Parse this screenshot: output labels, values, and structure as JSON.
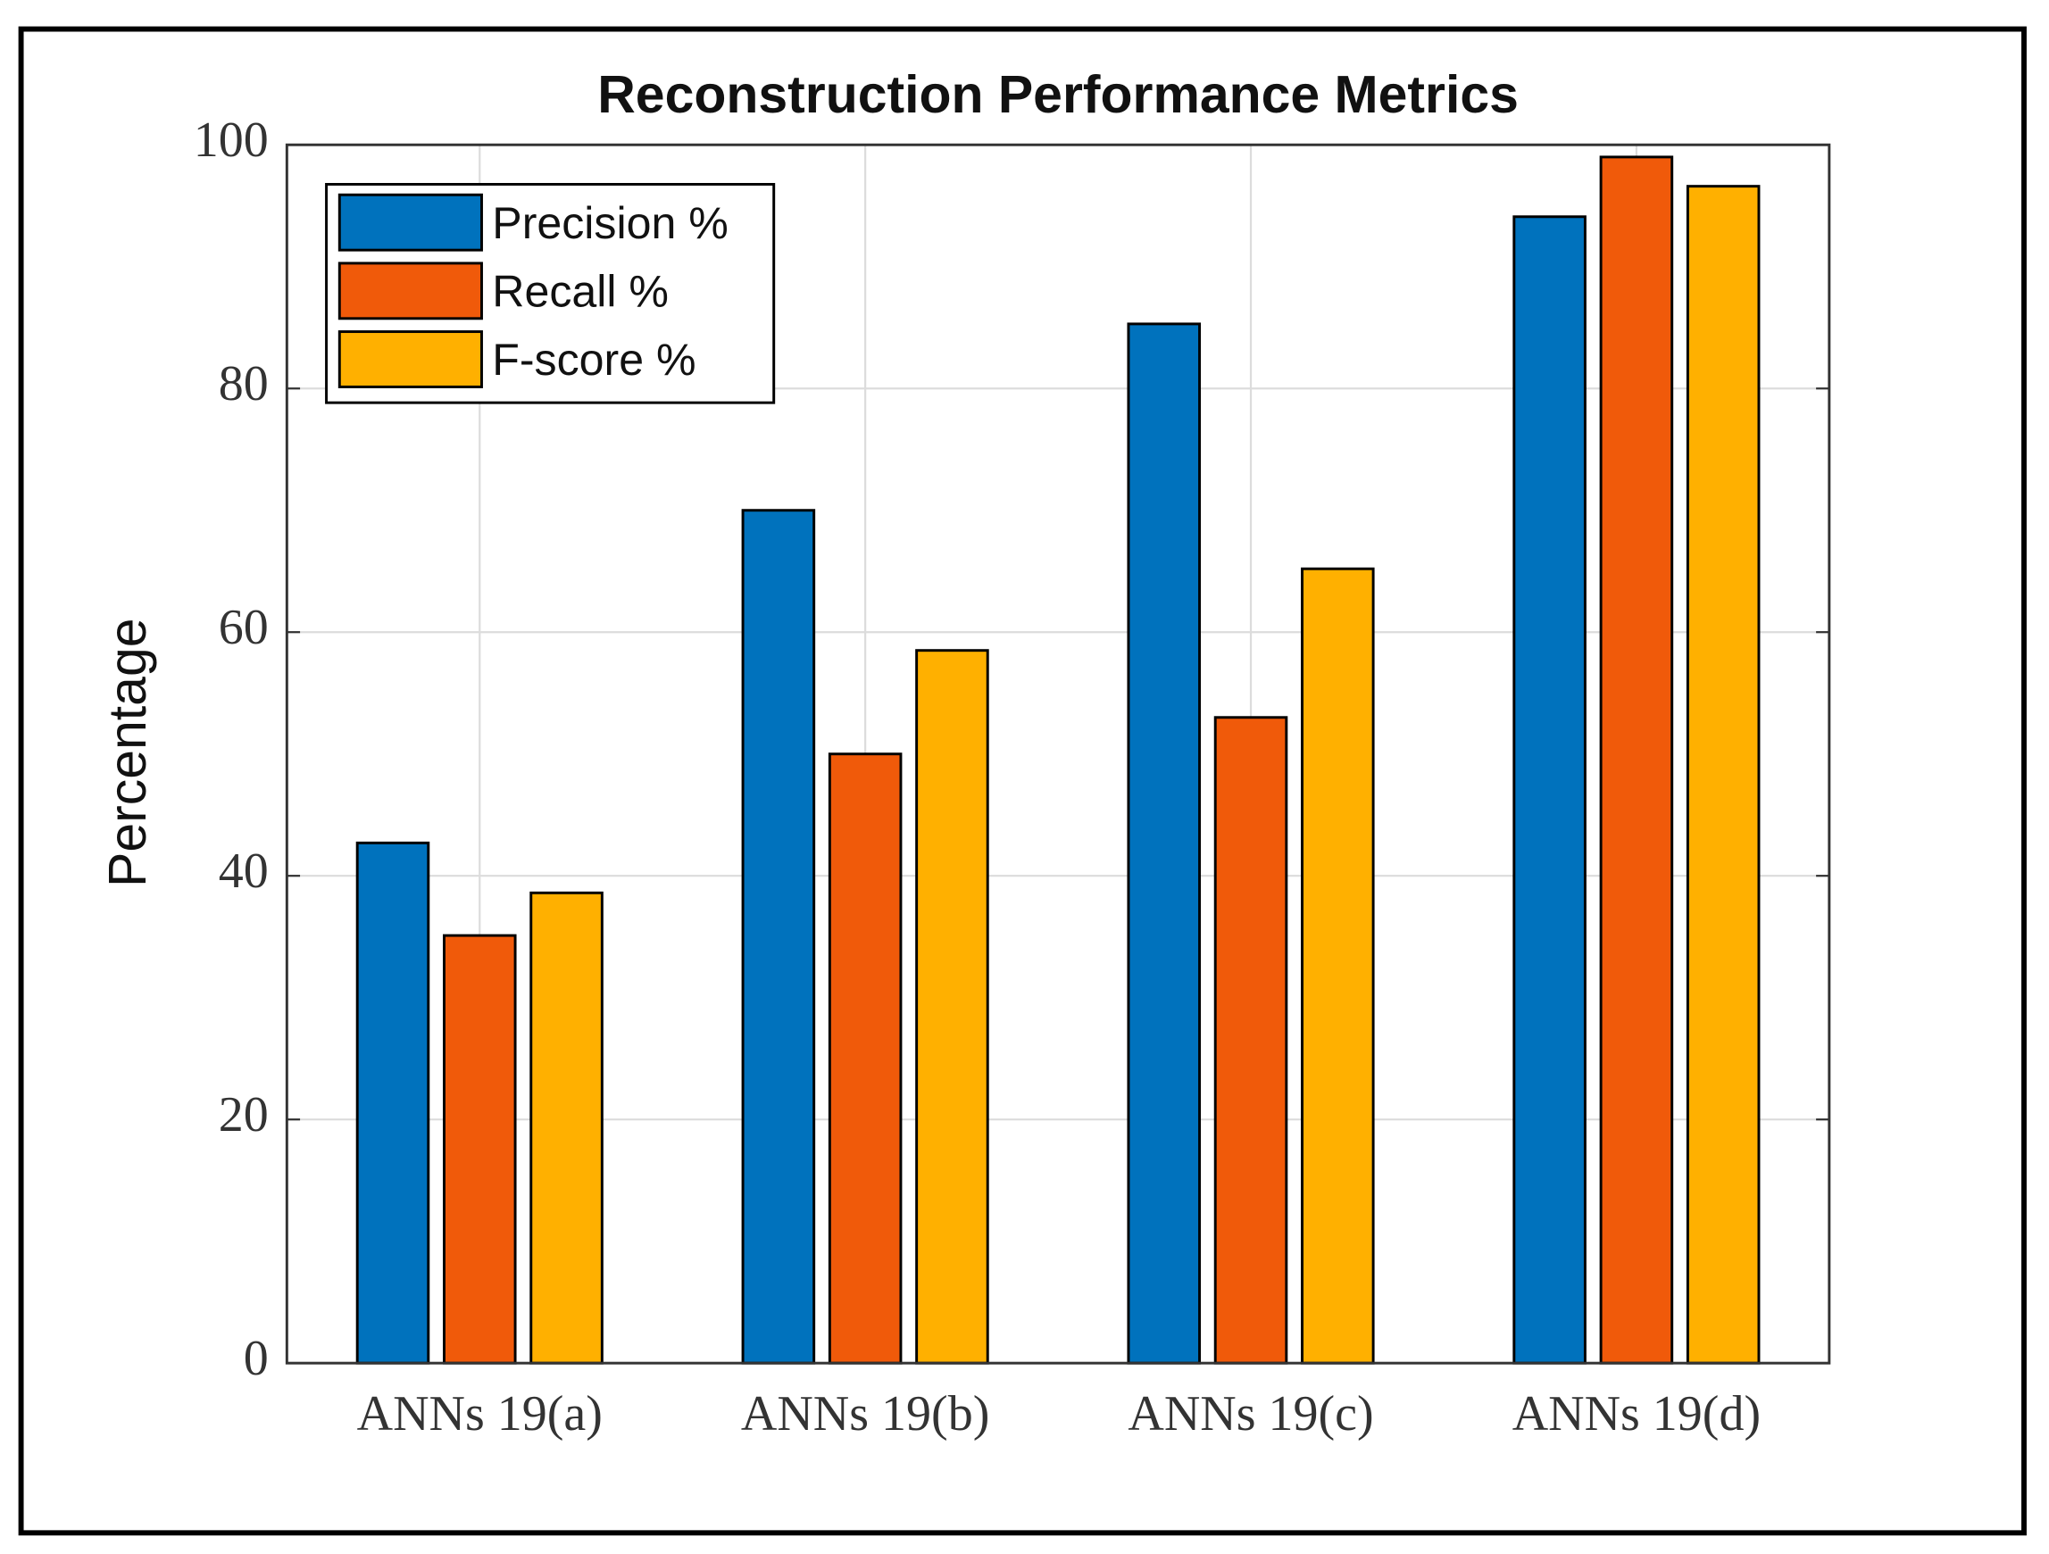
{
  "chart_data": {
    "type": "bar",
    "title": "Reconstruction Performance Metrics",
    "y_label": "Percentage",
    "categories": [
      "ANNs 19(a)",
      "ANNs 19(b)",
      "ANNs 19(c)",
      "ANNs 19(d)"
    ],
    "series": [
      {
        "name": "Precision %",
        "color": "#0072bd",
        "values": [
          42.7,
          70,
          85.3,
          94.1
        ]
      },
      {
        "name": "Recall %",
        "color": "#f05a0a",
        "values": [
          35.1,
          50,
          53,
          99
        ]
      },
      {
        "name": "F-score %",
        "color": "#ffb000",
        "values": [
          38.6,
          58.5,
          65.2,
          96.6
        ]
      }
    ],
    "ylim": [
      0,
      100
    ],
    "yticks": [
      0,
      20,
      40,
      60,
      80,
      100
    ],
    "grid": true,
    "legend": "upper-left"
  }
}
